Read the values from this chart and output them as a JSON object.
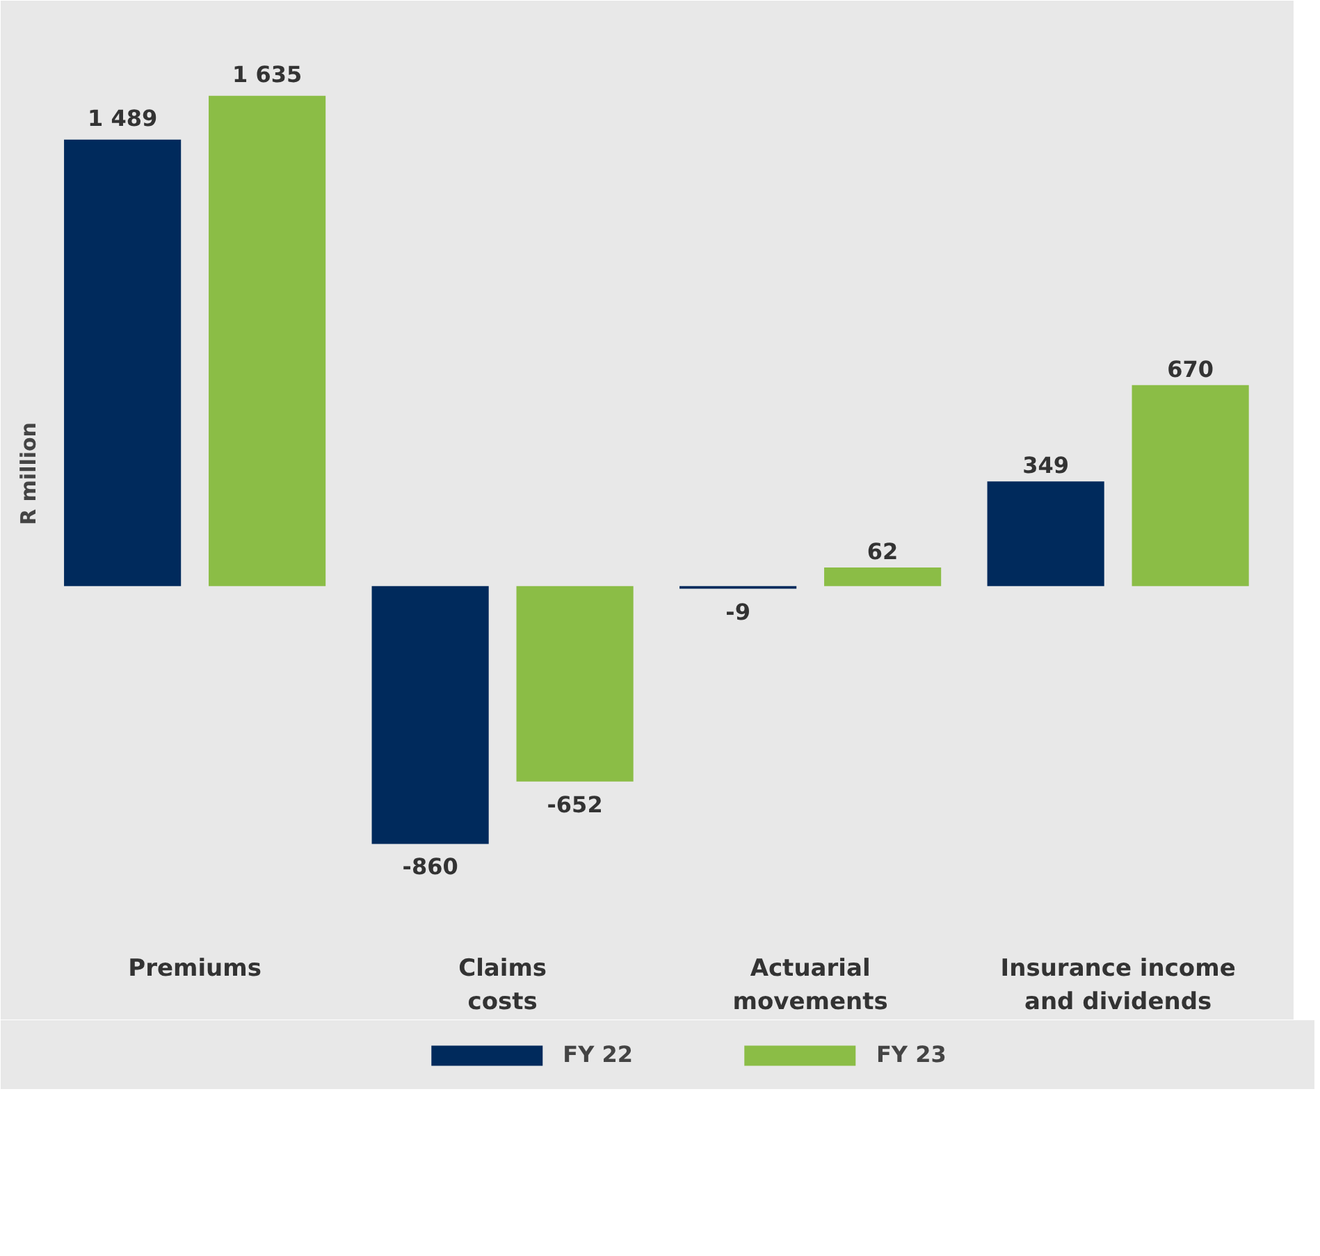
{
  "chart_data": {
    "type": "bar",
    "ylabel": "R million",
    "categories": [
      "Premiums",
      "Claims\ncosts",
      "Actuarial\nmovements",
      "Insurance income\nand dividends"
    ],
    "series": [
      {
        "name": "FY 22",
        "color": "#002a5c",
        "values": [
          1489,
          -860,
          -9,
          349
        ],
        "value_labels": [
          "1 489",
          "-860",
          "-9",
          "349"
        ]
      },
      {
        "name": "FY 23",
        "color": "#8bbd46",
        "values": [
          1635,
          -652,
          62,
          670
        ],
        "value_labels": [
          "1 635",
          "-652",
          "62",
          "670"
        ]
      }
    ],
    "legend": "bottom",
    "grid": false
  }
}
